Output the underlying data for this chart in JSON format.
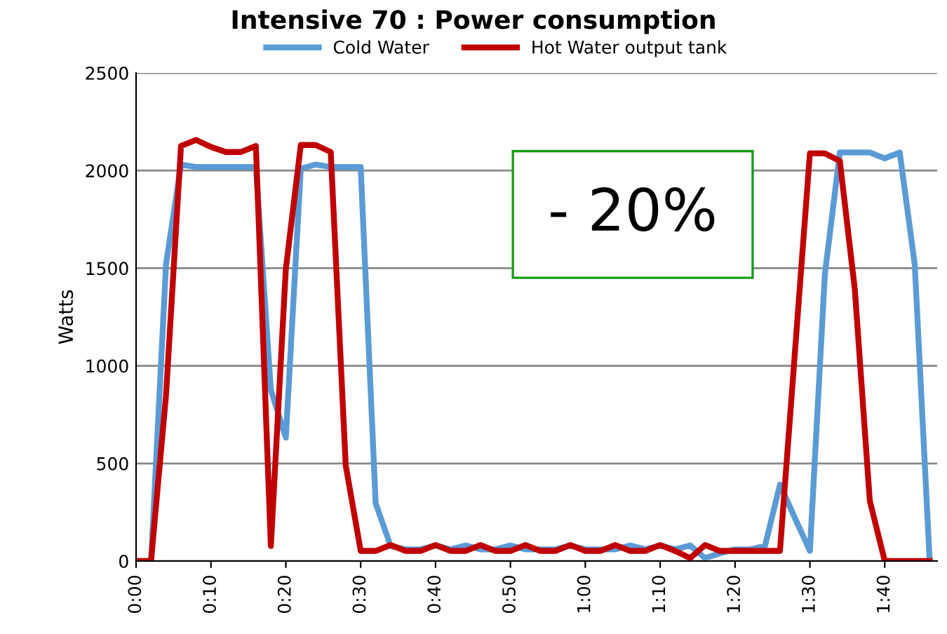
{
  "chart_data": {
    "type": "line",
    "title": "Intensive 70 : Power consumption",
    "ylabel": "Watts",
    "x": [
      0,
      2,
      4,
      6,
      8,
      10,
      12,
      14,
      16,
      18,
      20,
      22,
      24,
      26,
      28,
      30,
      32,
      34,
      36,
      38,
      40,
      42,
      44,
      46,
      48,
      50,
      52,
      54,
      56,
      58,
      60,
      62,
      64,
      66,
      68,
      70,
      72,
      74,
      76,
      78,
      80,
      82,
      84,
      86,
      88,
      90,
      92,
      94,
      96,
      98,
      100,
      102,
      104,
      106
    ],
    "series": [
      {
        "name": "Cold Water",
        "color": "#5b9bd5",
        "values": [
          0,
          0,
          1520,
          2031,
          2018,
          2018,
          2018,
          2018,
          2018,
          876,
          632,
          2010,
          2031,
          2018,
          2018,
          2018,
          296,
          77,
          60,
          60,
          80,
          60,
          80,
          60,
          60,
          80,
          60,
          60,
          60,
          80,
          60,
          60,
          60,
          80,
          60,
          80,
          60,
          80,
          15,
          40,
          60,
          60,
          77,
          392,
          220,
          52,
          1469,
          2093,
          2093,
          2093,
          2062,
          2093,
          1520,
          0
        ]
      },
      {
        "name": "Hot Water output tank",
        "color": "#c00000",
        "values": [
          0,
          0,
          850,
          2126,
          2157,
          2121,
          2095,
          2095,
          2126,
          77,
          1495,
          2131,
          2131,
          2095,
          490,
          52,
          52,
          82,
          52,
          52,
          82,
          52,
          52,
          82,
          52,
          52,
          82,
          52,
          52,
          82,
          52,
          52,
          82,
          52,
          52,
          82,
          52,
          15,
          82,
          52,
          52,
          52,
          52,
          52,
          1070,
          2088,
          2088,
          2049,
          1392,
          309,
          0,
          0,
          0,
          0
        ]
      }
    ],
    "xlim": [
      0,
      107
    ],
    "xticks": [
      {
        "value": 0,
        "label": "0:00"
      },
      {
        "value": 10,
        "label": "0:10"
      },
      {
        "value": 20,
        "label": "0:20"
      },
      {
        "value": 30,
        "label": "0:30"
      },
      {
        "value": 40,
        "label": "0:40"
      },
      {
        "value": 50,
        "label": "0:50"
      },
      {
        "value": 60,
        "label": "1:00"
      },
      {
        "value": 70,
        "label": "1:10"
      },
      {
        "value": 80,
        "label": "1:20"
      },
      {
        "value": 90,
        "label": "1:30"
      },
      {
        "value": 100,
        "label": "1:40"
      }
    ],
    "ylim": [
      0,
      2500
    ],
    "yticks": [
      0,
      500,
      1000,
      1500,
      2000,
      2500
    ],
    "grid": "y",
    "legend": "top",
    "marker": "none",
    "line_style": "solid",
    "annotations": [
      "- 20%"
    ]
  }
}
